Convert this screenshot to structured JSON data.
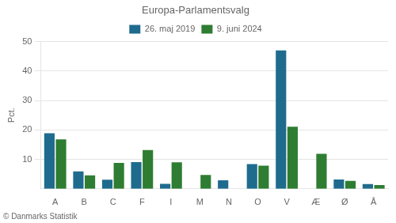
{
  "chart_data": {
    "type": "bar",
    "title": "Europa-Parlamentsvalg",
    "categories": [
      "A",
      "B",
      "C",
      "F",
      "I",
      "M",
      "N",
      "O",
      "V",
      "Æ",
      "Ø",
      "Å"
    ],
    "series": [
      {
        "name": "26. maj 2019",
        "color": "#1f6b8e",
        "values": [
          18.9,
          5.9,
          3.1,
          9.1,
          1.7,
          0.0,
          2.9,
          8.4,
          47.0,
          0.0,
          3.2,
          1.6
        ]
      },
      {
        "name": "9. juni 2024",
        "color": "#2e7d32",
        "values": [
          16.8,
          4.6,
          8.8,
          13.2,
          9.0,
          4.7,
          0.0,
          7.9,
          21.1,
          11.9,
          2.7,
          1.3
        ]
      }
    ],
    "ylabel": "Pct.",
    "ylim": [
      0,
      50
    ],
    "yticks": [
      10,
      20,
      30,
      40,
      50
    ],
    "grid": true,
    "legend": "top",
    "footer": "© Danmarks Statistik"
  }
}
